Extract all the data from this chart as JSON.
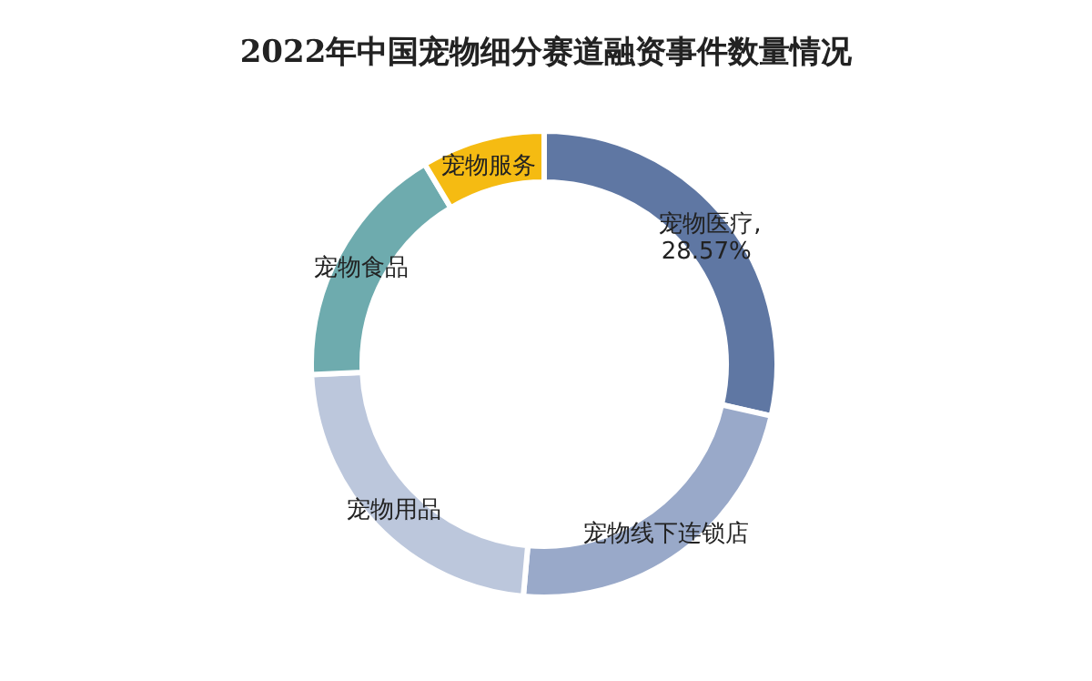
{
  "chart_data": {
    "type": "donut",
    "title": "2022年中国宠物细分赛道融资事件数量情况",
    "categories": [
      "宠物医疗",
      "宠物线下连锁店",
      "宠物用品",
      "宠物食品",
      "宠物服务"
    ],
    "values": [
      28.57,
      22.86,
      22.86,
      17.14,
      8.57
    ],
    "colors": [
      "#5f77a3",
      "#99a9c9",
      "#bcc7dc",
      "#6eabae",
      "#f5bb12"
    ],
    "value_labels": [
      ",28.57%",
      null,
      null,
      null,
      null
    ]
  }
}
